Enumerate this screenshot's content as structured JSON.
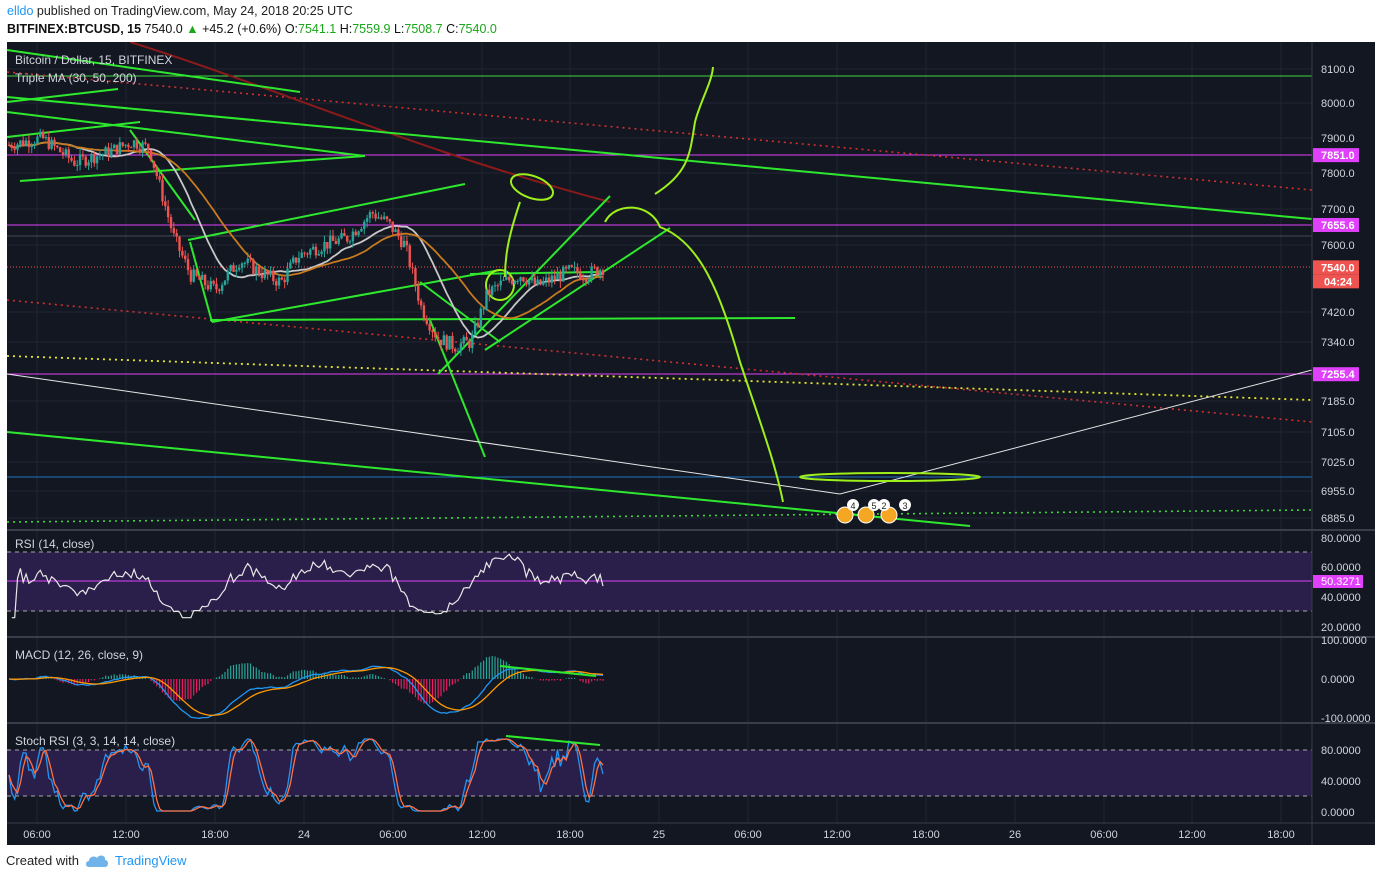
{
  "header": {
    "user": "elldo",
    "published": "published on TradingView.com, May 24, 2018 20:25 UTC",
    "symbol": "BITFINEX:BTCUSD, 15",
    "last": "7540.0",
    "change": "+45.2 (+0.6%)",
    "o_label": "O:",
    "o": "7541.1",
    "h_label": "H:",
    "h": "7559.9",
    "l_label": "L:",
    "l": "7508.7",
    "c_label": "C:",
    "c": "7540.0"
  },
  "colors": {
    "background": "#131722",
    "up": "#26a69a",
    "down": "#ef5350",
    "drawing": "#00e31e",
    "magenta": "#e040fb"
  },
  "chart_data": [
    {
      "type": "candlestick",
      "title": "Bitcoin / Dollar, 15, BITFINEX",
      "indicator": "Triple MA (30, 50, 200)",
      "x_ticks": [
        "06:00",
        "12:00",
        "18:00",
        "24",
        "06:00",
        "12:00",
        "18:00",
        "25",
        "06:00",
        "12:00",
        "18:00",
        "26",
        "06:00",
        "12:00",
        "18:00"
      ],
      "y_ticks": [
        "8100.0",
        "8000.0",
        "7900.0",
        "7800.0",
        "7700.0",
        "7600.0",
        "7420.0",
        "7340.0",
        "7185.0",
        "7105.0",
        "7025.0",
        "6955.0",
        "6885.0"
      ],
      "y_tick_values": [
        8100,
        8000,
        7900,
        7800,
        7700,
        7600,
        7420,
        7340,
        7185,
        7105,
        7025,
        6955,
        6885
      ],
      "price_labels": [
        {
          "value": 7851.0,
          "text": "7851.0",
          "color": "#e040fb"
        },
        {
          "value": 7655.6,
          "text": "7655.6",
          "color": "#e040fb"
        },
        {
          "value": 7540.0,
          "text": "7540.0",
          "color": "#ef5350"
        },
        {
          "value": 7255.4,
          "text": "7255.4",
          "color": "#e040fb"
        }
      ],
      "countdown": "04:24",
      "close_path": [
        [
          0,
          7880
        ],
        [
          8,
          7900
        ],
        [
          16,
          7830
        ],
        [
          24,
          7860
        ],
        [
          30,
          7890
        ],
        [
          34,
          7870
        ],
        [
          40,
          7620
        ],
        [
          44,
          7520
        ],
        [
          50,
          7480
        ],
        [
          56,
          7560
        ],
        [
          62,
          7520
        ],
        [
          66,
          7500
        ],
        [
          70,
          7570
        ],
        [
          76,
          7600
        ],
        [
          82,
          7620
        ],
        [
          88,
          7690
        ],
        [
          92,
          7660
        ],
        [
          96,
          7600
        ],
        [
          100,
          7430
        ],
        [
          104,
          7350
        ],
        [
          108,
          7330
        ],
        [
          112,
          7340
        ],
        [
          116,
          7470
        ],
        [
          120,
          7500
        ],
        [
          124,
          7520
        ],
        [
          128,
          7490
        ],
        [
          132,
          7510
        ],
        [
          136,
          7530
        ],
        [
          140,
          7520
        ],
        [
          144,
          7540
        ]
      ]
    },
    {
      "type": "line",
      "title": "RSI (14, close)",
      "last_value": "50.3271",
      "y_ticks": [
        "80.0000",
        "60.0000",
        "40.0000",
        "20.0000"
      ],
      "band": [
        30,
        70
      ]
    },
    {
      "type": "line",
      "title": "MACD (12, 26, close, 9)",
      "y_ticks": [
        "100.0000",
        "0.0000",
        "-100.0000"
      ]
    },
    {
      "type": "line",
      "title": "Stoch RSI (3, 3, 14, 14, close)",
      "y_ticks": [
        "80.0000",
        "40.0000",
        "0.0000"
      ],
      "band": [
        20,
        80
      ]
    }
  ],
  "markers": [
    "4",
    "5",
    "2",
    "3"
  ],
  "footer": {
    "created_with": "Created with",
    "brand": "TradingView"
  }
}
